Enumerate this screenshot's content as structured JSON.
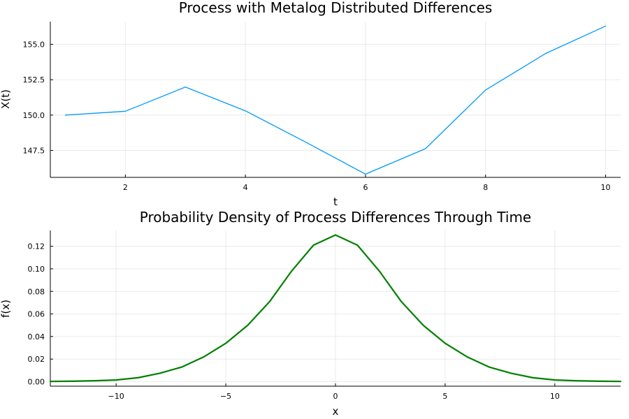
{
  "chart_data": [
    {
      "type": "line",
      "title": "Process with Metalog Distributed Differences",
      "xlabel": "t",
      "ylabel": "X(t)",
      "xlim": [
        0.75,
        10.25
      ],
      "ylim": [
        145.6,
        156.6
      ],
      "xticks": [
        2,
        4,
        6,
        8,
        10
      ],
      "xtick_labels": [
        "2",
        "4",
        "6",
        "8",
        "10"
      ],
      "yticks": [
        147.5,
        150.0,
        152.5,
        155.0
      ],
      "ytick_labels": [
        "147.5",
        "150.0",
        "152.5",
        "155.0"
      ],
      "grid": true,
      "legend": "none",
      "series": [
        {
          "color": "#009af9",
          "x": [
            1,
            2,
            3,
            4,
            5,
            6,
            7,
            8,
            9,
            10
          ],
          "y": [
            150.0,
            150.27,
            151.98,
            150.3,
            148.1,
            145.83,
            147.63,
            151.77,
            154.35,
            156.29
          ]
        }
      ]
    },
    {
      "type": "line",
      "title": "Probability Density of Process Differences Through Time",
      "xlabel": "x",
      "ylabel": "f(x)",
      "xlim": [
        -13,
        13
      ],
      "ylim": [
        -0.004,
        0.134
      ],
      "xticks": [
        -10,
        -5,
        0,
        5,
        10
      ],
      "xtick_labels": [
        "−10",
        "−5",
        "0",
        "5",
        "10"
      ],
      "yticks": [
        0.0,
        0.02,
        0.04,
        0.06,
        0.08,
        0.1,
        0.12
      ],
      "ytick_labels": [
        "0.00",
        "0.02",
        "0.04",
        "0.06",
        "0.08",
        "0.10",
        "0.12"
      ],
      "grid": true,
      "legend": "none",
      "series": [
        {
          "color": "#008000",
          "x": [
            -13,
            -12,
            -11,
            -10,
            -9,
            -8,
            -7,
            -6,
            -5,
            -4,
            -3,
            -2,
            -1,
            0,
            1,
            2,
            3,
            4,
            5,
            6,
            7,
            8,
            9,
            10,
            11,
            12,
            13
          ],
          "y": [
            0.0002,
            0.0004,
            0.0008,
            0.0015,
            0.0035,
            0.0075,
            0.013,
            0.022,
            0.034,
            0.05,
            0.071,
            0.098,
            0.121,
            0.13,
            0.121,
            0.098,
            0.071,
            0.05,
            0.034,
            0.022,
            0.013,
            0.0075,
            0.0035,
            0.0015,
            0.0008,
            0.0004,
            0.0002
          ]
        }
      ]
    }
  ]
}
